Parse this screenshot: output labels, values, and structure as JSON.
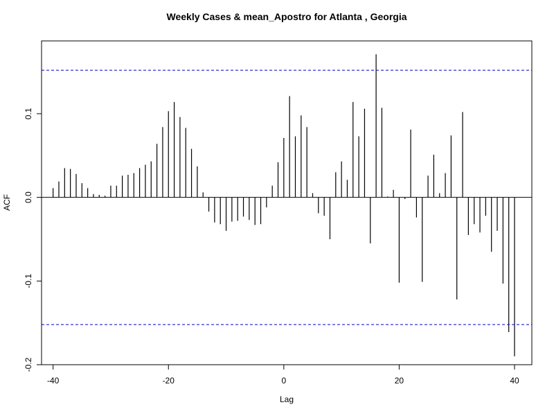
{
  "chart_data": {
    "type": "bar",
    "title": "Weekly Cases & mean_Apostro for Atlanta , Georgia",
    "xlabel": "Lag",
    "ylabel": "ACF",
    "xlim": [
      -42,
      43
    ],
    "ylim": [
      -0.2,
      0.187
    ],
    "x_ticks": [
      -40,
      -20,
      0,
      20,
      40
    ],
    "y_ticks": [
      0.1,
      0.0,
      -0.1,
      -0.2
    ],
    "x_tick_labels": [
      "-40",
      "-20",
      "0",
      "20",
      "40"
    ],
    "y_tick_labels": [
      "0.1",
      "0.0",
      "-0.1",
      "-0.2"
    ],
    "confidence_bounds": [
      0.152,
      -0.152
    ],
    "confidence_color": "#0000cc",
    "grid": false,
    "x": [
      -40,
      -39,
      -38,
      -37,
      -36,
      -35,
      -34,
      -33,
      -32,
      -31,
      -30,
      -29,
      -28,
      -27,
      -26,
      -25,
      -24,
      -23,
      -22,
      -21,
      -20,
      -19,
      -18,
      -17,
      -16,
      -15,
      -14,
      -13,
      -12,
      -11,
      -10,
      -9,
      -8,
      -7,
      -6,
      -5,
      -4,
      -3,
      -2,
      -1,
      0,
      1,
      2,
      3,
      4,
      5,
      6,
      7,
      8,
      9,
      10,
      11,
      12,
      13,
      14,
      15,
      16,
      17,
      18,
      19,
      20,
      21,
      22,
      23,
      24,
      25,
      26,
      27,
      28,
      29,
      30,
      31,
      32,
      33,
      34,
      35,
      36,
      37,
      38,
      39,
      40
    ],
    "values": [
      0.011,
      0.019,
      0.035,
      0.034,
      0.028,
      0.017,
      0.011,
      0.004,
      0.003,
      0.002,
      0.014,
      0.014,
      0.026,
      0.027,
      0.029,
      0.035,
      0.039,
      0.043,
      0.064,
      0.084,
      0.103,
      0.114,
      0.096,
      0.083,
      0.058,
      0.037,
      0.006,
      -0.017,
      -0.03,
      -0.032,
      -0.04,
      -0.029,
      -0.028,
      -0.023,
      -0.027,
      -0.033,
      -0.032,
      -0.012,
      0.014,
      0.042,
      0.071,
      0.121,
      0.073,
      0.098,
      0.084,
      0.005,
      -0.019,
      -0.022,
      -0.05,
      0.03,
      0.043,
      0.021,
      0.114,
      0.073,
      0.106,
      -0.055,
      0.171,
      0.107,
      0.001,
      0.009,
      -0.102,
      -0.002,
      0.081,
      -0.024,
      -0.101,
      0.026,
      0.051,
      0.005,
      0.029,
      0.074,
      -0.122,
      0.102,
      -0.045,
      -0.032,
      -0.042,
      -0.022,
      -0.065,
      -0.04,
      -0.103,
      -0.161,
      -0.19
    ]
  }
}
